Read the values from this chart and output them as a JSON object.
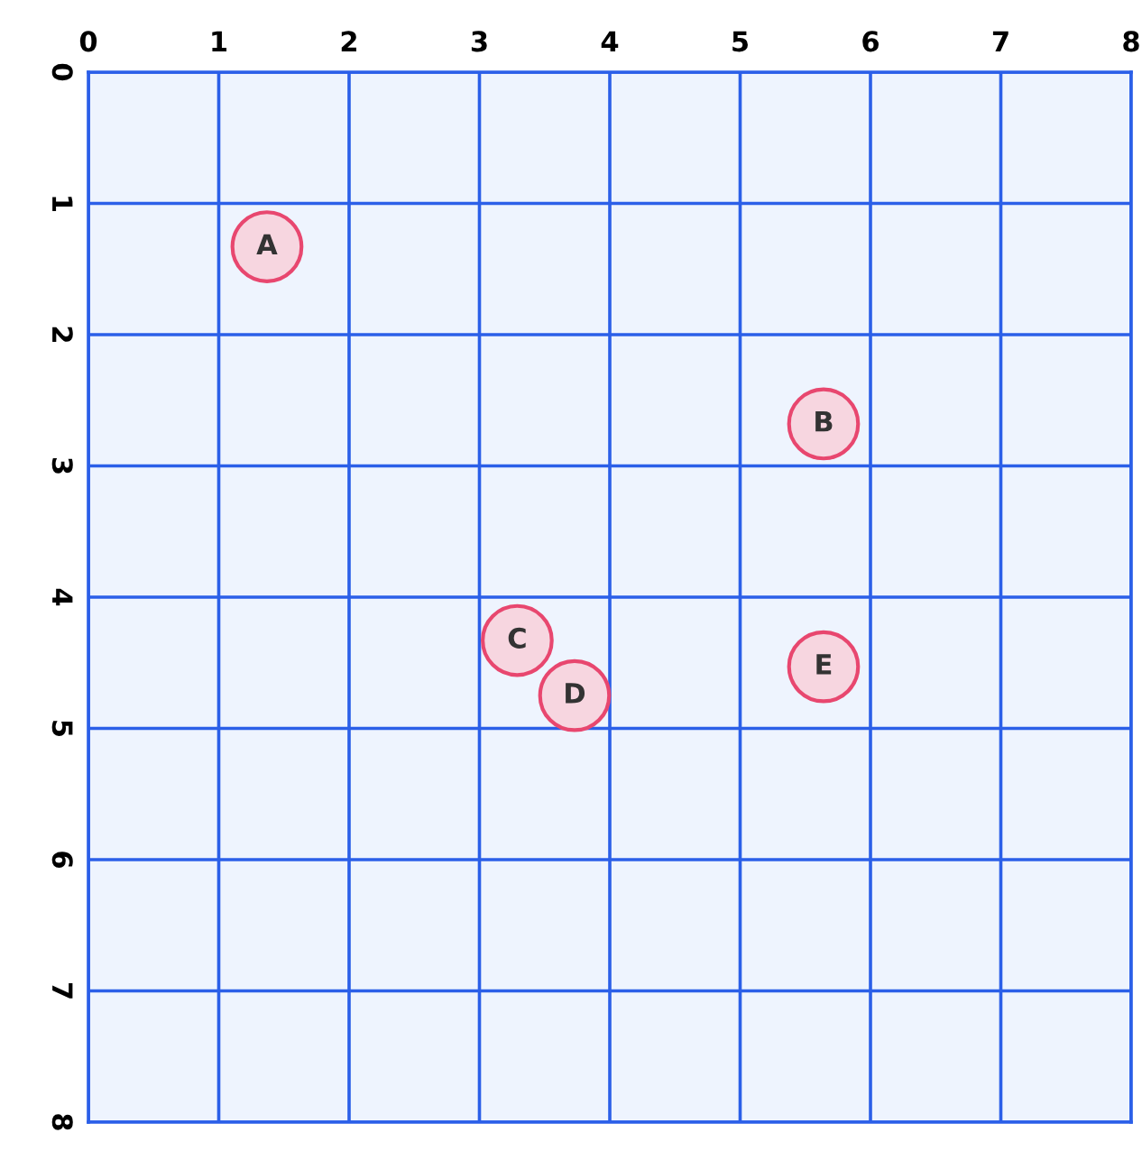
{
  "chart_data": {
    "type": "scatter",
    "x": [
      1.37,
      5.64,
      3.29,
      3.73,
      5.64
    ],
    "series": [
      {
        "color": "#f7d6e0",
        "values": [
          1.33,
          2.68,
          4.33,
          4.75,
          4.53
        ]
      }
    ],
    "annotations": [
      {
        "text": "A",
        "x": 1.37,
        "y": 1.33
      },
      {
        "text": "B",
        "x": 5.64,
        "y": 2.68
      },
      {
        "text": "C",
        "x": 3.29,
        "y": 4.33
      },
      {
        "text": "D",
        "x": 3.73,
        "y": 4.75
      },
      {
        "text": "E",
        "x": 5.64,
        "y": 4.53
      }
    ],
    "xlim": [
      0,
      8
    ],
    "ylim": [
      8,
      0
    ],
    "xticks": [
      0,
      1,
      2,
      3,
      4,
      5,
      6,
      7,
      8
    ],
    "yticks": [
      0,
      1,
      2,
      3,
      4,
      5,
      6,
      7,
      8
    ],
    "grid": true,
    "legend": false,
    "marker": "circle"
  }
}
